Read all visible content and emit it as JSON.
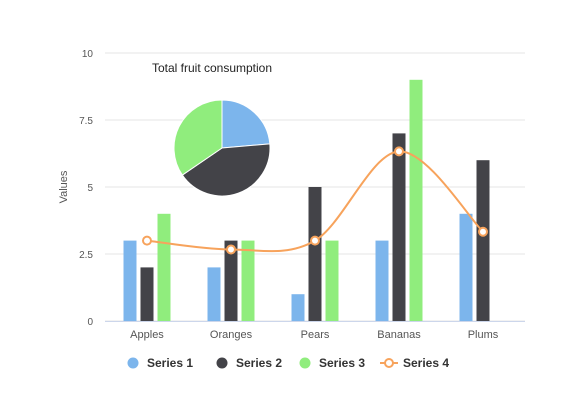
{
  "chart_data": [
    {
      "type": "bar",
      "categories": [
        "Apples",
        "Oranges",
        "Pears",
        "Bananas",
        "Plums"
      ],
      "series": [
        {
          "name": "Series 1",
          "type": "bar",
          "color": "#7cb5ec",
          "values": [
            3,
            2,
            1,
            3,
            4
          ]
        },
        {
          "name": "Series 2",
          "type": "bar",
          "color": "#434348",
          "values": [
            2,
            3,
            5,
            7,
            6
          ]
        },
        {
          "name": "Series 3",
          "type": "bar",
          "color": "#90ed7d",
          "values": [
            4,
            3,
            3,
            9,
            0
          ]
        },
        {
          "name": "Series 4",
          "type": "spline",
          "color": "#f7a35c",
          "values": [
            3,
            2.67,
            3,
            6.33,
            3.33
          ]
        }
      ],
      "ylabel": "Values",
      "yticks": [
        "0",
        "2.5",
        "5",
        "7.5",
        "10"
      ],
      "ylim": [
        0,
        10
      ],
      "grid": true,
      "legend": "bottom"
    },
    {
      "type": "pie",
      "title": "Total fruit consumption",
      "slices": [
        {
          "label": "Series 1",
          "value": 13,
          "color": "#7cb5ec"
        },
        {
          "label": "Series 2",
          "value": 23,
          "color": "#434348"
        },
        {
          "label": "Series 3",
          "value": 19,
          "color": "#90ed7d"
        }
      ]
    }
  ],
  "legend_items": [
    {
      "label": "Series 1",
      "color": "#7cb5ec",
      "marker": "circle"
    },
    {
      "label": "Series 2",
      "color": "#434348",
      "marker": "circle"
    },
    {
      "label": "Series 3",
      "color": "#90ed7d",
      "marker": "circle"
    },
    {
      "label": "Series 4",
      "color": "#f7a35c",
      "marker": "line-circle"
    }
  ]
}
